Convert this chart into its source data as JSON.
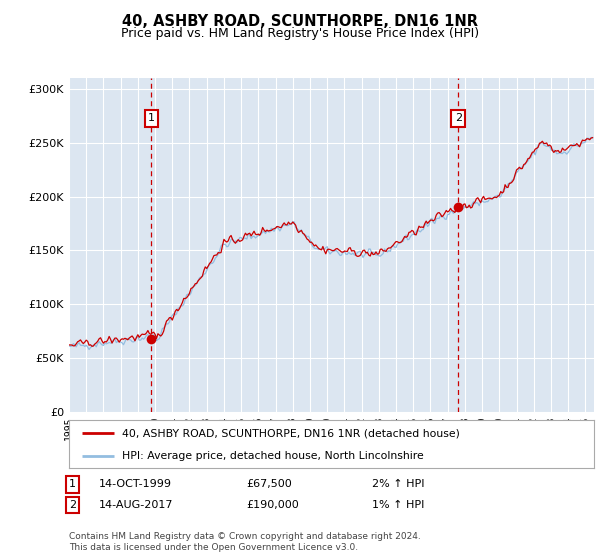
{
  "title": "40, ASHBY ROAD, SCUNTHORPE, DN16 1NR",
  "subtitle": "Price paid vs. HM Land Registry's House Price Index (HPI)",
  "ylabel_ticks": [
    "£0",
    "£50K",
    "£100K",
    "£150K",
    "£200K",
    "£250K",
    "£300K"
  ],
  "ytick_values": [
    0,
    50000,
    100000,
    150000,
    200000,
    250000,
    300000
  ],
  "ylim": [
    0,
    310000
  ],
  "xlim_start": 1995.0,
  "xlim_end": 2025.5,
  "background_color": "#ffffff",
  "plot_bg_color": "#dce6f1",
  "grid_color": "#ffffff",
  "hpi_line_color": "#93bde0",
  "price_line_color": "#cc0000",
  "marker_color": "#cc0000",
  "dashed_line_color": "#cc0000",
  "legend_label_price": "40, ASHBY ROAD, SCUNTHORPE, DN16 1NR (detached house)",
  "legend_label_hpi": "HPI: Average price, detached house, North Lincolnshire",
  "transaction1_x": 1999.79,
  "transaction1_y": 67500,
  "transaction1_label": "1",
  "transaction2_x": 2017.62,
  "transaction2_y": 190000,
  "transaction2_label": "2",
  "copyright": "Contains HM Land Registry data © Crown copyright and database right 2024.\nThis data is licensed under the Open Government Licence v3.0."
}
